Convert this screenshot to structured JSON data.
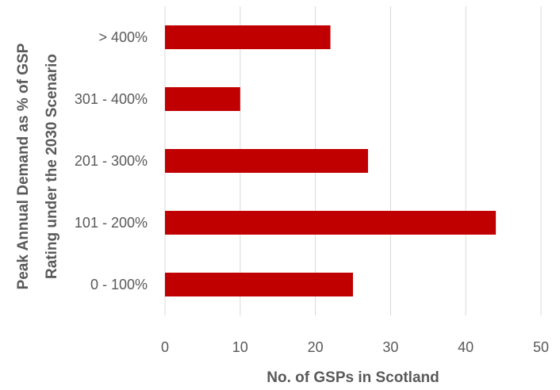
{
  "chart_data": {
    "type": "bar",
    "orientation": "horizontal",
    "categories": [
      "0 - 100%",
      "101 - 200%",
      "201 - 300%",
      "301 - 400%",
      "> 400%"
    ],
    "values": [
      25,
      44,
      27,
      10,
      22
    ],
    "xlabel": "No. of GSPs in Scotland",
    "ylabel_lines": [
      "Peak Annual Demand as % of GSP",
      "Rating under the 2030 Scenario"
    ],
    "xlim": [
      0,
      50
    ],
    "xticks": [
      0,
      10,
      20,
      30,
      40,
      50
    ],
    "grid": true,
    "legend": "none",
    "bar_color": "#c00000"
  }
}
